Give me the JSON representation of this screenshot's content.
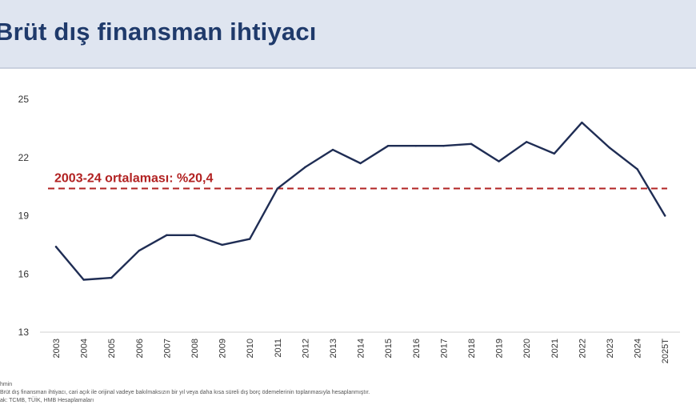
{
  "header": {
    "title": "Brüt dış finansman ihtiyacı"
  },
  "chart_data": {
    "type": "line",
    "title": "Brüt dış finansman ihtiyacı",
    "xlabel": "",
    "ylabel": "",
    "categories": [
      "2003",
      "2004",
      "2005",
      "2006",
      "2007",
      "2008",
      "2009",
      "2010",
      "2011",
      "2012",
      "2013",
      "2014",
      "2015",
      "2016",
      "2017",
      "2018",
      "2019",
      "2020",
      "2021",
      "2022",
      "2023",
      "2024",
      "2025T"
    ],
    "series": [
      {
        "name": "",
        "values": [
          17.4,
          15.7,
          15.8,
          17.2,
          18.0,
          18.0,
          17.5,
          17.8,
          20.4,
          21.5,
          22.4,
          21.7,
          22.6,
          22.6,
          22.6,
          22.7,
          21.8,
          22.8,
          22.2,
          23.8,
          22.5,
          21.4,
          19.0
        ],
        "color": "#1f2d54"
      }
    ],
    "reference_line": {
      "label": "2003-24 ortalaması: %20,4",
      "value": 20.4,
      "color": "#b22222",
      "style": "dashed"
    },
    "ylim": [
      13,
      25
    ],
    "yticks": [
      13,
      16,
      19,
      22,
      25
    ],
    "grid": false
  },
  "footnotes": {
    "line1": "hmin",
    "line2": "Brüt dış finansman ihtiyacı, cari açık ile orijinal vadeye bakılmaksızın bir yıl veya daha kısa süreli dış borç ödemelerinin toplanmasıyla hesaplanmıştır.",
    "line3": "ak: TCMB, TÜİK, HMB Hesaplamaları"
  }
}
